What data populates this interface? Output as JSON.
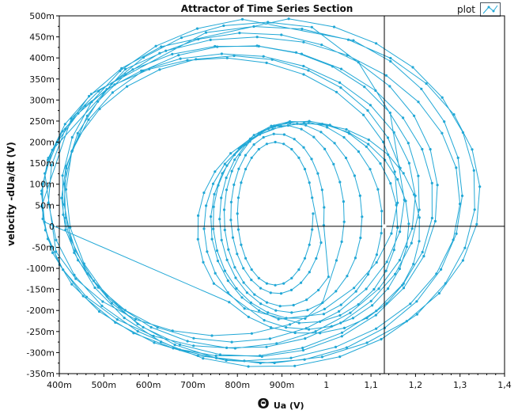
{
  "chart_data": {
    "type": "line",
    "title": "Attractor of Time Series Section",
    "xlabel_symbol": "Θ",
    "xlabel": "Ua (V)",
    "ylabel": "velocity -dUa/dt  (V)",
    "xlim": [
      0.4,
      1.4
    ],
    "ylim": [
      -0.35,
      0.5
    ],
    "grid": false,
    "legend": {
      "position": "top-right",
      "entries": [
        "plot"
      ]
    },
    "x_ticks": [
      {
        "value": 0.4,
        "label": "400m"
      },
      {
        "value": 0.5,
        "label": "500m"
      },
      {
        "value": 0.6,
        "label": "600m"
      },
      {
        "value": 0.7,
        "label": "700m"
      },
      {
        "value": 0.8,
        "label": "800m"
      },
      {
        "value": 0.9,
        "label": "900m"
      },
      {
        "value": 1.0,
        "label": "1"
      },
      {
        "value": 1.1,
        "label": "1,1"
      },
      {
        "value": 1.2,
        "label": "1,2"
      },
      {
        "value": 1.3,
        "label": "1,3"
      },
      {
        "value": 1.4,
        "label": "1,4"
      }
    ],
    "y_ticks": [
      {
        "value": 0.5,
        "label": "500m"
      },
      {
        "value": 0.45,
        "label": "450m"
      },
      {
        "value": 0.4,
        "label": "400m"
      },
      {
        "value": 0.35,
        "label": "350m"
      },
      {
        "value": 0.3,
        "label": "300m"
      },
      {
        "value": 0.25,
        "label": "250m"
      },
      {
        "value": 0.2,
        "label": "200m"
      },
      {
        "value": 0.15,
        "label": "150m"
      },
      {
        "value": 0.1,
        "label": "100m"
      },
      {
        "value": 0.05,
        "label": "50m"
      },
      {
        "value": 0.0,
        "label": "0"
      },
      {
        "value": -0.05,
        "label": "-50m"
      },
      {
        "value": -0.1,
        "label": "-100m"
      },
      {
        "value": -0.15,
        "label": "-150m"
      },
      {
        "value": -0.2,
        "label": "-200m"
      },
      {
        "value": -0.25,
        "label": "-250m"
      },
      {
        "value": -0.3,
        "label": "-300m"
      },
      {
        "value": -0.35,
        "label": "-350m"
      }
    ],
    "cursor": {
      "x": 1.13,
      "y": 0.0
    },
    "series": [
      {
        "color": "#22a8d6",
        "loops": [
          {
            "cx": 0.885,
            "cy": 0.03,
            "rx": 0.085,
            "ry": 0.17
          },
          {
            "cx": 0.89,
            "cy": 0.03,
            "rx": 0.105,
            "ry": 0.19
          },
          {
            "cx": 0.905,
            "cy": 0.025,
            "rx": 0.135,
            "ry": 0.215
          },
          {
            "cx": 0.92,
            "cy": 0.02,
            "rx": 0.16,
            "ry": 0.225
          },
          {
            "cx": 0.935,
            "cy": 0.015,
            "rx": 0.19,
            "ry": 0.235
          },
          {
            "cx": 0.95,
            "cy": 0.01,
            "rx": 0.21,
            "ry": 0.24
          },
          {
            "cx": 0.955,
            "cy": 0.0,
            "rx": 0.23,
            "ry": 0.245
          },
          {
            "cx": 0.96,
            "cy": -0.005,
            "rx": 0.25,
            "ry": 0.25
          },
          {
            "cx": 0.76,
            "cy": 0.07,
            "rx": 0.4,
            "ry": 0.33
          },
          {
            "cx": 0.78,
            "cy": 0.06,
            "rx": 0.42,
            "ry": 0.35
          },
          {
            "cx": 0.8,
            "cy": 0.06,
            "rx": 0.44,
            "ry": 0.37
          },
          {
            "cx": 0.83,
            "cy": 0.065,
            "rx": 0.47,
            "ry": 0.385
          },
          {
            "cx": 0.86,
            "cy": 0.075,
            "rx": 0.485,
            "ry": 0.4
          },
          {
            "cx": 0.87,
            "cy": 0.08,
            "rx": 0.465,
            "ry": 0.415
          },
          {
            "cx": 0.86,
            "cy": 0.08,
            "rx": 0.445,
            "ry": 0.405
          },
          {
            "cx": 0.83,
            "cy": 0.075,
            "rx": 0.42,
            "ry": 0.385
          },
          {
            "cx": 0.81,
            "cy": 0.07,
            "rx": 0.4,
            "ry": 0.36
          },
          {
            "cx": 0.79,
            "cy": 0.065,
            "rx": 0.385,
            "ry": 0.34
          }
        ]
      }
    ]
  }
}
